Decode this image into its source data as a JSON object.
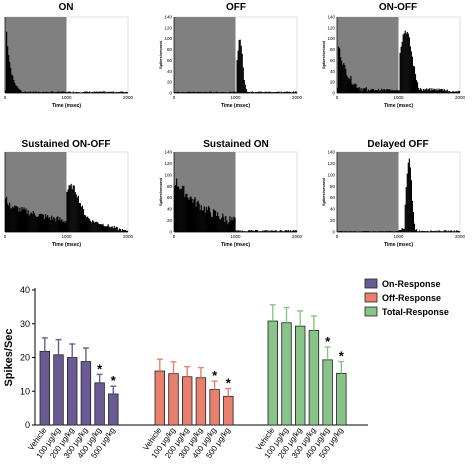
{
  "colors": {
    "stimulus_shade": "#808080",
    "on_response": "#6b5b95",
    "off_response": "#e8806e",
    "total_response": "#88c48a"
  },
  "chart_data": [
    {
      "type": "histogram",
      "title": "ON",
      "xlabel": "Time (msec)",
      "ylabel": "",
      "xlim": [
        0,
        2000
      ],
      "xticks": [
        "0",
        "1000",
        "2000"
      ],
      "stimulus_shaded": [
        0,
        1000
      ],
      "pattern": "on"
    },
    {
      "type": "histogram",
      "title": "OFF",
      "xlabel": "Time (msec)",
      "ylabel": "Spikes/second",
      "xlim": [
        0,
        2000
      ],
      "ylim": [
        0,
        140
      ],
      "xticks": [
        "0",
        "1000",
        "2000"
      ],
      "yticks": [
        "0",
        "20",
        "40",
        "60",
        "80",
        "100",
        "120",
        "140"
      ],
      "stimulus_shaded": [
        0,
        1000
      ],
      "pattern": "off"
    },
    {
      "type": "histogram",
      "title": "ON-OFF",
      "xlabel": "Time (msec)",
      "ylabel": "Spikes/second",
      "xlim": [
        0,
        2000
      ],
      "ylim": [
        0,
        140
      ],
      "xticks": [
        "0",
        "1000",
        "2000"
      ],
      "yticks": [
        "0",
        "20",
        "40",
        "60",
        "80",
        "100",
        "120",
        "140"
      ],
      "stimulus_shaded": [
        0,
        1000
      ],
      "pattern": "onoff"
    },
    {
      "type": "histogram",
      "title": "Sustained ON-OFF",
      "xlabel": "Time (msec)",
      "ylabel": "",
      "xlim": [
        0,
        2000
      ],
      "xticks": [
        "0",
        "1000",
        "2000"
      ],
      "stimulus_shaded": [
        0,
        1000
      ],
      "pattern": "sonoff"
    },
    {
      "type": "histogram",
      "title": "Sustained ON",
      "xlabel": "Time (msec)",
      "ylabel": "Spikes/second",
      "xlim": [
        0,
        2000
      ],
      "ylim": [
        0,
        140
      ],
      "xticks": [
        "0",
        "1000",
        "2000"
      ],
      "yticks": [
        "0",
        "20",
        "40",
        "60",
        "80",
        "100",
        "120",
        "140"
      ],
      "stimulus_shaded": [
        0,
        1000
      ],
      "pattern": "son"
    },
    {
      "type": "histogram",
      "title": "Delayed OFF",
      "xlabel": "Time (msec)",
      "ylabel": "Spikes/second",
      "xlim": [
        0,
        2000
      ],
      "ylim": [
        0,
        140
      ],
      "xticks": [
        "0",
        "1000",
        "2000"
      ],
      "yticks": [
        "0",
        "20",
        "40",
        "60",
        "80",
        "100",
        "120",
        "140"
      ],
      "stimulus_shaded": [
        0,
        1000
      ],
      "pattern": "doff"
    },
    {
      "type": "bar",
      "ylabel": "Spikes/Sec",
      "ylim": [
        0,
        40
      ],
      "yticks": [
        "0",
        "10",
        "20",
        "30",
        "40"
      ],
      "categories": [
        "Vehicle",
        "100 μg/kg",
        "200 μg/kg",
        "300 μg/kg",
        "400 μg/kg",
        "500 μg/kg"
      ],
      "legend_position": "top-right",
      "series": [
        {
          "name": "On-Response",
          "values": [
            21.8,
            20.8,
            20.0,
            18.8,
            12.5,
            9.2
          ],
          "errors": [
            4.0,
            4.5,
            4.0,
            4.0,
            2.5,
            2.3
          ],
          "significant": [
            false,
            false,
            false,
            false,
            true,
            true
          ]
        },
        {
          "name": "Off-Response",
          "values": [
            16.0,
            15.2,
            14.3,
            14.0,
            10.5,
            8.5
          ],
          "errors": [
            3.5,
            3.5,
            3.0,
            3.0,
            2.5,
            2.3
          ],
          "significant": [
            false,
            false,
            false,
            false,
            true,
            true
          ]
        },
        {
          "name": "Total-Response",
          "values": [
            30.8,
            30.3,
            29.3,
            28.0,
            19.3,
            15.3
          ],
          "errors": [
            4.8,
            4.5,
            4.5,
            4.3,
            3.8,
            3.5
          ],
          "significant": [
            false,
            false,
            false,
            false,
            true,
            true
          ]
        }
      ],
      "significance_marker": "*"
    }
  ]
}
